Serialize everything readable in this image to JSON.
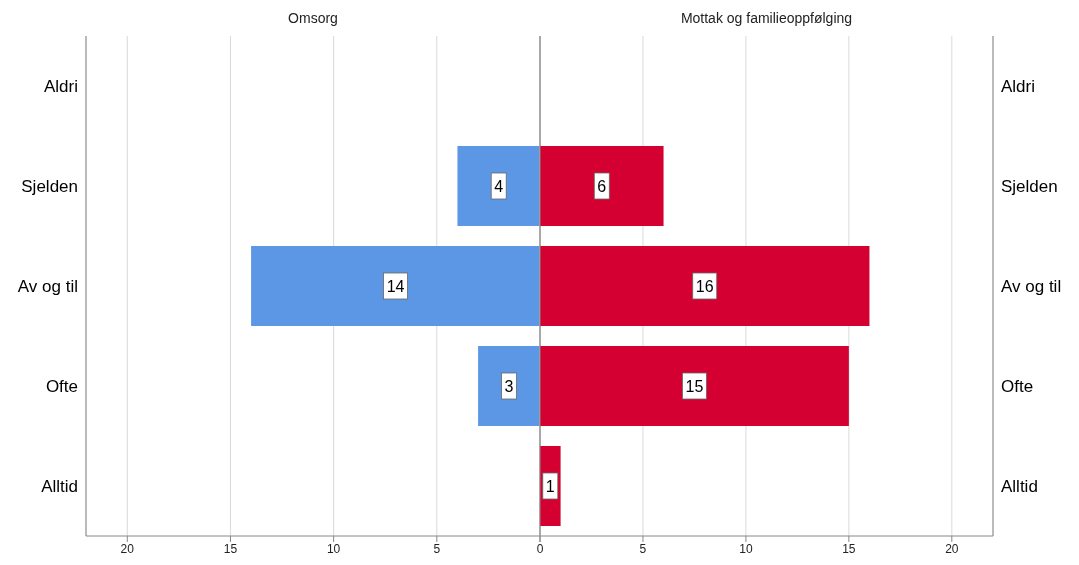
{
  "chart_data": [
    {
      "type": "bar",
      "orientation": "horizontal",
      "title": "Omsorg",
      "categories": [
        "Aldri",
        "Sjelden",
        "Av og til",
        "Ofte",
        "Alltid"
      ],
      "values": [
        null,
        4,
        14,
        3,
        null
      ],
      "color": "#5b97e4",
      "xlim": [
        22,
        0
      ],
      "xticks": [
        20,
        15,
        10,
        5,
        {
          "value": 0,
          "label": null
        }
      ],
      "grid": "x",
      "data_labels": true
    },
    {
      "type": "bar",
      "orientation": "horizontal",
      "title": "Mottak og familieoppfølging",
      "categories": [
        "Aldri",
        "Sjelden",
        "Av og til",
        "Ofte",
        "Alltid"
      ],
      "values": [
        null,
        6,
        16,
        15,
        1
      ],
      "color": "#d50032",
      "xlim": [
        0,
        22
      ],
      "xticks": [
        0,
        5,
        10,
        15,
        20
      ],
      "grid": "x",
      "data_labels": true
    }
  ]
}
